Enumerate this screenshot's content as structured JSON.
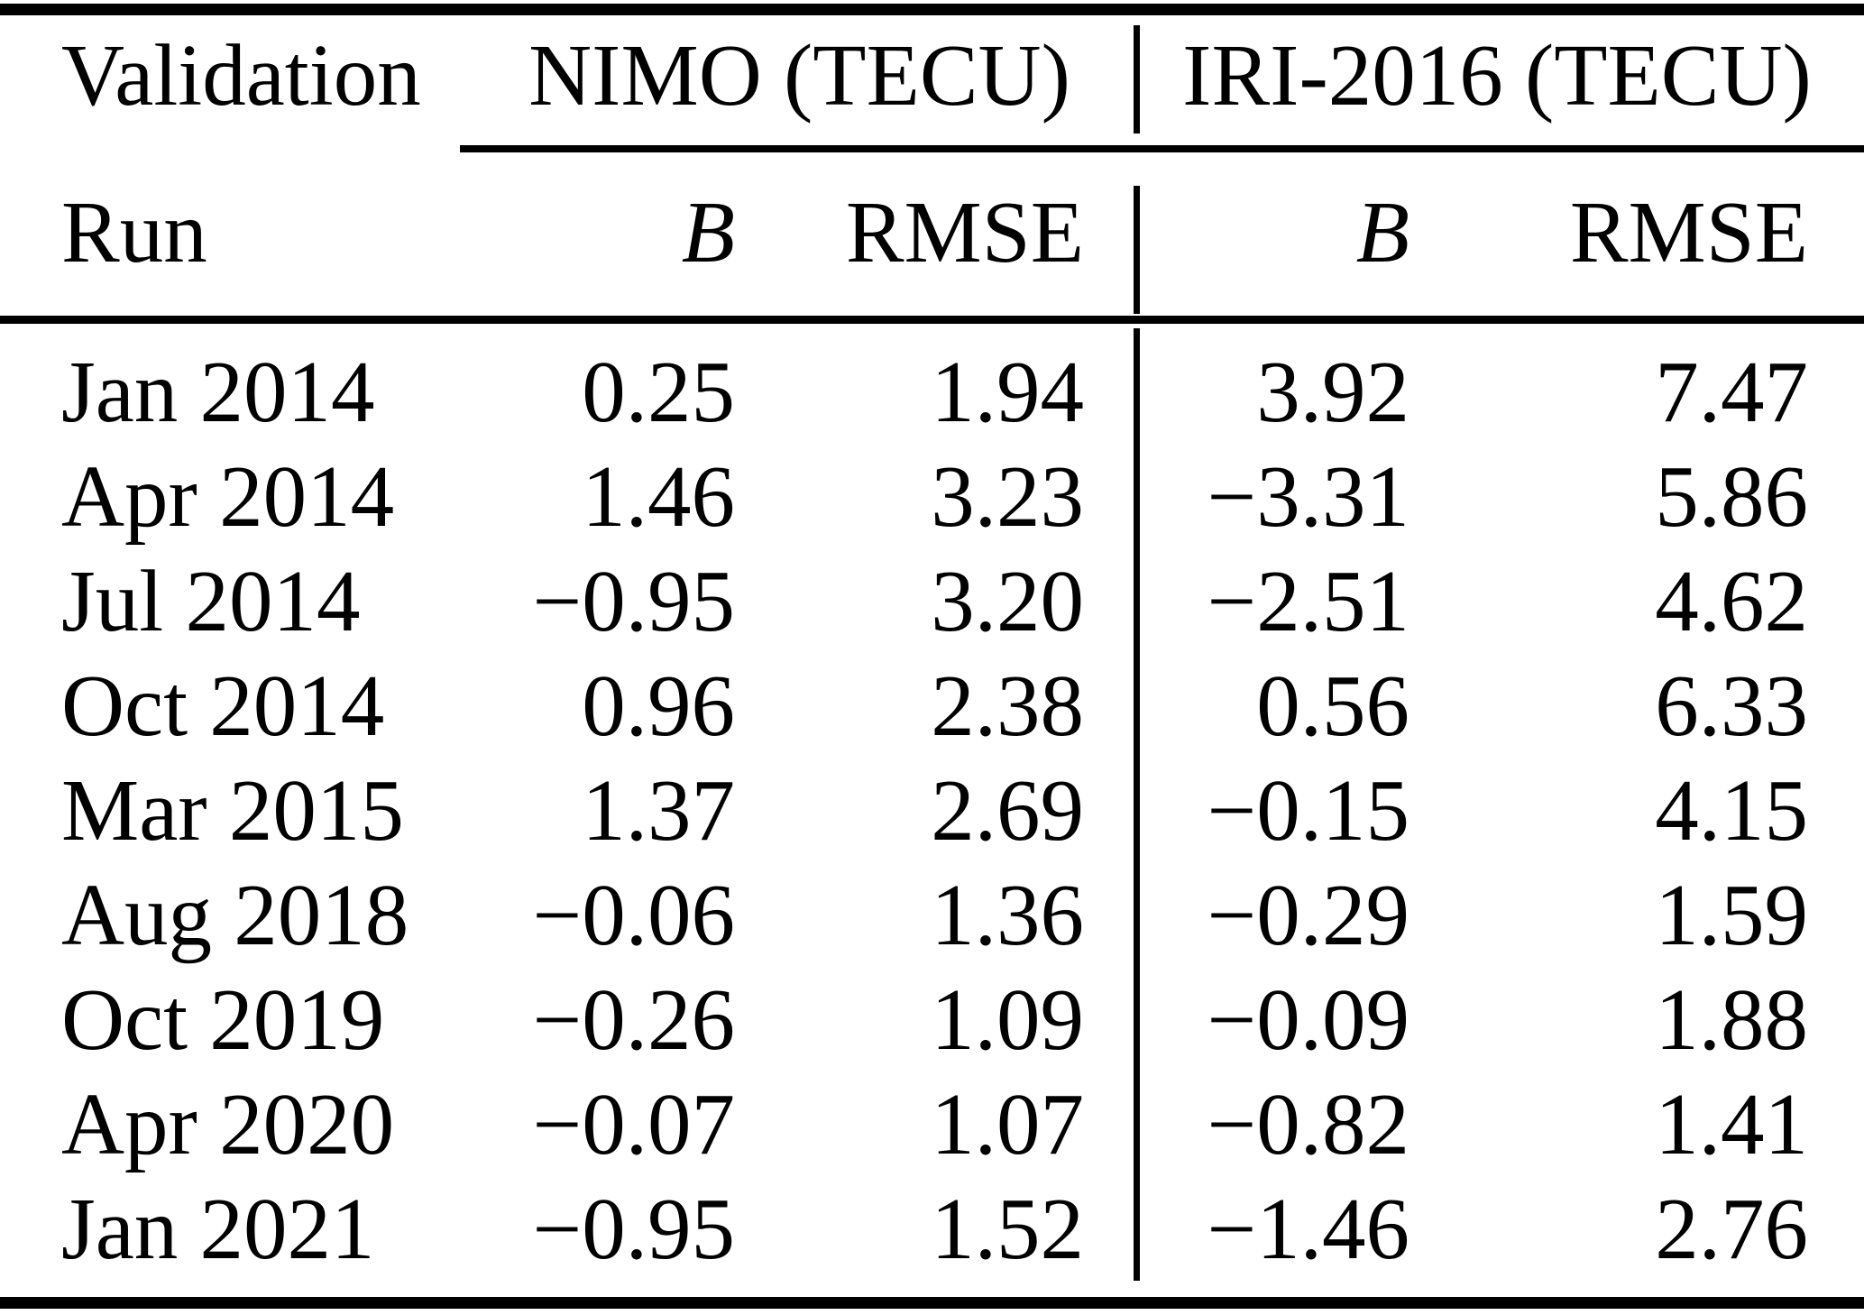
{
  "page": {
    "background": "#ffffff",
    "text_color": "#000000"
  },
  "table": {
    "header": {
      "row_label_line1": "Validation",
      "row_label_line2": "Run",
      "group1_label": "NIMO (TECU)",
      "group2_label": "IRI-2016 (TECU)",
      "bias_label": "B",
      "rmse_label": "RMSE"
    },
    "rows": [
      {
        "run": "Jan 2014",
        "nimo_b": "0.25",
        "nimo_rmse": "1.94",
        "iri_b": "3.92",
        "iri_rmse": "7.47"
      },
      {
        "run": "Apr 2014",
        "nimo_b": "1.46",
        "nimo_rmse": "3.23",
        "iri_b": "−3.31",
        "iri_rmse": "5.86"
      },
      {
        "run": "Jul 2014",
        "nimo_b": "−0.95",
        "nimo_rmse": "3.20",
        "iri_b": "−2.51",
        "iri_rmse": "4.62"
      },
      {
        "run": "Oct 2014",
        "nimo_b": "0.96",
        "nimo_rmse": "2.38",
        "iri_b": "0.56",
        "iri_rmse": "6.33"
      },
      {
        "run": "Mar 2015",
        "nimo_b": "1.37",
        "nimo_rmse": "2.69",
        "iri_b": "−0.15",
        "iri_rmse": "4.15"
      },
      {
        "run": "Aug 2018",
        "nimo_b": "−0.06",
        "nimo_rmse": "1.36",
        "iri_b": "−0.29",
        "iri_rmse": "1.59"
      },
      {
        "run": "Oct 2019",
        "nimo_b": "−0.26",
        "nimo_rmse": "1.09",
        "iri_b": "−0.09",
        "iri_rmse": "1.88"
      },
      {
        "run": "Apr 2020",
        "nimo_b": "−0.07",
        "nimo_rmse": "1.07",
        "iri_b": "−0.82",
        "iri_rmse": "1.41"
      },
      {
        "run": "Jan 2021",
        "nimo_b": "−0.95",
        "nimo_rmse": "1.52",
        "iri_b": "−1.46",
        "iri_rmse": "2.76"
      }
    ]
  },
  "chart_data": {
    "type": "table",
    "columns": [
      "Validation Run",
      "NIMO B (TECU)",
      "NIMO RMSE (TECU)",
      "IRI-2016 B (TECU)",
      "IRI-2016 RMSE (TECU)"
    ],
    "rows": [
      [
        "Jan 2014",
        0.25,
        1.94,
        3.92,
        7.47
      ],
      [
        "Apr 2014",
        1.46,
        3.23,
        -3.31,
        5.86
      ],
      [
        "Jul 2014",
        -0.95,
        3.2,
        -2.51,
        4.62
      ],
      [
        "Oct 2014",
        0.96,
        2.38,
        0.56,
        6.33
      ],
      [
        "Mar 2015",
        1.37,
        2.69,
        -0.15,
        4.15
      ],
      [
        "Aug 2018",
        -0.06,
        1.36,
        -0.29,
        1.59
      ],
      [
        "Oct 2019",
        -0.26,
        1.09,
        -0.09,
        1.88
      ],
      [
        "Apr 2020",
        -0.07,
        1.07,
        -0.82,
        1.41
      ],
      [
        "Jan 2021",
        -0.95,
        1.52,
        -1.46,
        2.76
      ]
    ]
  }
}
